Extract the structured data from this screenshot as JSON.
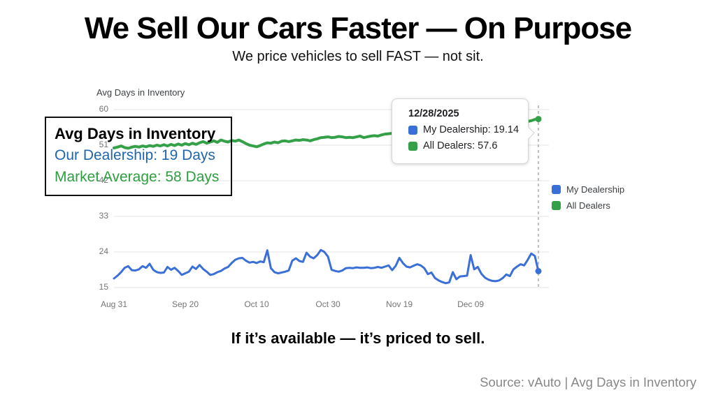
{
  "page": {
    "title": "We Sell Our Cars Faster — On Purpose",
    "subtitle": "We price vehicles to sell FAST — not sit.",
    "slogan": "If it’s available — it’s priced to sell.",
    "source": "Source: vAuto | Avg Days in Inventory"
  },
  "colors": {
    "my_dealership": "#3a6fd8",
    "all_dealers": "#34a047",
    "grid": "#e3e3e3",
    "crosshair": "#9e9e9e",
    "axis_text": "#757575"
  },
  "overlay_box": {
    "title": "Avg Days in Inventory",
    "line1": "Our Dealership: 19 Days",
    "line1_color": "#2166ac",
    "line2": "Market Average: 58 Days",
    "line2_color": "#2e9e41"
  },
  "tooltip": {
    "date": "12/28/2025",
    "entries": [
      {
        "label": "My Dealership: 19.14",
        "color": "#3a6fd8"
      },
      {
        "label": "All Dealers: 57.6",
        "color": "#34a047"
      }
    ]
  },
  "legend": [
    {
      "label": "My Dealership",
      "color": "#3a6fd8"
    },
    {
      "label": "All Dealers",
      "color": "#34a047"
    }
  ],
  "chart_data": {
    "type": "line",
    "title": "Avg Days in Inventory",
    "xlabel": "",
    "ylabel": "Avg Days in Inventory",
    "ylim": [
      15,
      60
    ],
    "y_ticks": [
      60,
      51,
      42,
      33,
      24,
      15
    ],
    "x_tick_labels": [
      "Aug 31",
      "Sep 20",
      "Oct 10",
      "Oct 30",
      "Nov 19",
      "Dec 09"
    ],
    "x_tick_days": [
      0,
      20,
      40,
      60,
      80,
      100
    ],
    "x_range_days": [
      0,
      119
    ],
    "crosshair_day": 119,
    "crosshair_date": "12/28/2025",
    "grid": true,
    "legend_position": "right",
    "series": [
      {
        "name": "My Dealership",
        "color": "#3a6fd8",
        "width": 3,
        "end_value": 19.14,
        "values": [
          17.3,
          18.0,
          18.9,
          20.0,
          20.4,
          19.4,
          19.3,
          19.6,
          20.4,
          20.0,
          21.0,
          19.5,
          18.9,
          18.7,
          18.8,
          20.2,
          19.5,
          20.0,
          19.2,
          18.2,
          18.6,
          19.0,
          20.3,
          19.7,
          20.7,
          19.7,
          19.0,
          18.2,
          18.4,
          18.9,
          19.2,
          19.8,
          20.2,
          21.2,
          22.0,
          22.4,
          22.5,
          21.8,
          21.3,
          21.5,
          21.2,
          21.6,
          21.4,
          24.4,
          19.9,
          18.9,
          18.6,
          18.8,
          19.0,
          19.3,
          21.8,
          22.4,
          21.7,
          21.5,
          23.8,
          22.8,
          22.4,
          23.2,
          24.5,
          24.0,
          22.8,
          19.5,
          19.2,
          19.0,
          19.3,
          19.9,
          20.0,
          19.9,
          20.1,
          20.0,
          20.0,
          20.1,
          19.9,
          20.0,
          20.2,
          20.0,
          20.3,
          20.6,
          19.4,
          20.5,
          22.5,
          21.2,
          20.3,
          20.1,
          20.5,
          20.9,
          20.6,
          19.9,
          18.4,
          18.8,
          17.4,
          16.8,
          16.4,
          16.1,
          16.3,
          18.9,
          17.1,
          17.8,
          17.9,
          18.0,
          23.2,
          19.6,
          20.2,
          18.5,
          17.5,
          17.0,
          16.7,
          16.6,
          16.8,
          17.4,
          18.3,
          17.9,
          19.6,
          20.3,
          20.9,
          20.6,
          22.0,
          23.6,
          23.0,
          19.14
        ]
      },
      {
        "name": "All Dealers",
        "color": "#34a047",
        "width": 4,
        "end_value": 57.6,
        "values": [
          50.3,
          50.5,
          50.8,
          50.4,
          50.2,
          50.5,
          50.7,
          50.5,
          50.8,
          50.6,
          50.9,
          50.7,
          51.0,
          50.8,
          51.1,
          50.8,
          51.2,
          50.9,
          51.3,
          51.0,
          51.4,
          51.1,
          51.5,
          51.2,
          51.6,
          51.9,
          51.5,
          51.8,
          52.1,
          51.7,
          52.3,
          52.0,
          51.8,
          52.2,
          52.0,
          52.3,
          51.9,
          51.4,
          51.0,
          50.8,
          50.6,
          50.9,
          51.3,
          51.6,
          51.5,
          51.8,
          51.6,
          52.0,
          52.1,
          51.9,
          52.1,
          52.3,
          52.2,
          52.4,
          52.3,
          52.1,
          52.4,
          52.6,
          52.9,
          53.0,
          53.1,
          52.9,
          53.0,
          53.2,
          53.1,
          52.9,
          53.0,
          52.9,
          53.1,
          53.3,
          52.9,
          53.1,
          53.3,
          53.4,
          53.3,
          53.6,
          53.8,
          53.9,
          54.0,
          54.1,
          54.0,
          54.2,
          54.3,
          54.2,
          54.4,
          54.5,
          54.4,
          54.6,
          54.8,
          54.9,
          55.0,
          55.2,
          55.1,
          55.3,
          55.5,
          55.4,
          55.6,
          55.8,
          55.9,
          56.0,
          56.1,
          56.0,
          56.2,
          56.3,
          56.2,
          56.4,
          56.5,
          56.4,
          56.6,
          56.7,
          56.8,
          56.9,
          57.0,
          56.9,
          57.0,
          57.1,
          57.0,
          57.2,
          57.5,
          57.6
        ]
      }
    ]
  }
}
